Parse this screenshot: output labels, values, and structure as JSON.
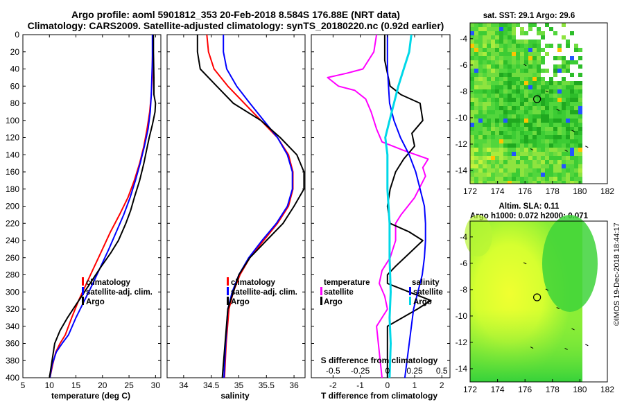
{
  "header": {
    "title_line1": "Argo profile: aoml 5901812_353 20-Feb-2018 8.584S 176.88E (NRT data)",
    "title_line2": "Climatology: CARS2009. Satellite-adjusted climatology: synTS_20180220.nc (0.92d earlier)"
  },
  "credit": "©IMOS 19-Dec-2018 18:44:17",
  "colors": {
    "climatology": "#ff0000",
    "satellite": "#0000ff",
    "argo": "#000000",
    "temperature_diff": "#ff00ff",
    "salinity_diff": "#00d8e8",
    "land_map_green": "#2ecf2e",
    "sla_map_yellow": "#e4ff2a"
  },
  "chart_data": [
    {
      "type": "line",
      "id": "temperature-profile",
      "xlabel": "temperature (deg C)",
      "ylabel": "",
      "xlim": [
        5,
        31
      ],
      "ylim": [
        400,
        0
      ],
      "xticks": [
        5,
        10,
        15,
        20,
        25,
        30
      ],
      "yticks": [
        0,
        20,
        40,
        60,
        80,
        100,
        120,
        140,
        160,
        180,
        200,
        220,
        240,
        260,
        280,
        300,
        320,
        340,
        360,
        380,
        400
      ],
      "legend": [
        "climatology",
        "satellite-adj. clim.",
        "Argo"
      ],
      "series": [
        {
          "name": "climatology",
          "color": "#ff0000",
          "x": [
            29.5,
            29.5,
            29.4,
            29.4,
            29.2,
            28.9,
            28.4,
            27.8,
            27.0,
            26.0,
            24.8,
            23.2,
            21.5,
            20.0,
            18.5,
            17.0,
            15.5,
            14.2,
            13.0,
            12.0,
            11.2,
            10.6,
            10.1
          ],
          "y": [
            0,
            10,
            30,
            50,
            70,
            90,
            110,
            130,
            150,
            170,
            190,
            210,
            230,
            250,
            270,
            290,
            310,
            330,
            350,
            360,
            370,
            385,
            400
          ]
        },
        {
          "name": "satellite-adj. clim.",
          "color": "#0000ff",
          "x": [
            29.4,
            29.4,
            29.4,
            29.3,
            29.2,
            29.0,
            28.6,
            27.9,
            27.1,
            26.2,
            25.2,
            24.0,
            22.6,
            21.2,
            19.7,
            18.2,
            16.6,
            15.0,
            13.6,
            12.4,
            11.3,
            10.5,
            10.1
          ],
          "y": [
            0,
            10,
            30,
            50,
            70,
            90,
            110,
            130,
            150,
            170,
            190,
            210,
            230,
            250,
            270,
            290,
            310,
            330,
            350,
            360,
            370,
            385,
            400
          ]
        },
        {
          "name": "Argo",
          "color": "#000000",
          "x": [
            29.6,
            29.6,
            29.7,
            29.7,
            30.0,
            29.9,
            29.4,
            28.8,
            28.3,
            27.8,
            27.0,
            26.0,
            25.3,
            24.4,
            23.0,
            21.5,
            19.8,
            18.2,
            16.6,
            15.0,
            13.4,
            12.0,
            11.0,
            10.5,
            10.0
          ],
          "y": [
            0,
            20,
            50,
            70,
            80,
            90,
            105,
            120,
            135,
            150,
            170,
            190,
            205,
            220,
            240,
            255,
            270,
            285,
            300,
            315,
            330,
            345,
            360,
            380,
            400
          ]
        }
      ]
    },
    {
      "type": "line",
      "id": "salinity-profile",
      "xlabel": "salinity",
      "ylabel": "",
      "xlim": [
        33.7,
        36.2
      ],
      "ylim": [
        400,
        0
      ],
      "xticks": [
        34,
        34.5,
        35,
        35.5,
        36
      ],
      "legend": [
        "climatology",
        "satellite-adj. clim.",
        "Argo"
      ],
      "series": [
        {
          "name": "climatology",
          "color": "#ff0000",
          "x": [
            34.42,
            34.45,
            34.55,
            34.8,
            35.1,
            35.4,
            35.7,
            35.9,
            35.98,
            35.98,
            35.9,
            35.7,
            35.45,
            35.2,
            35.02,
            34.9,
            34.82,
            34.77,
            34.74
          ],
          "y": [
            0,
            20,
            40,
            60,
            80,
            100,
            120,
            140,
            160,
            180,
            200,
            220,
            240,
            260,
            280,
            300,
            320,
            360,
            400
          ]
        },
        {
          "name": "satellite-adj. clim.",
          "color": "#0000ff",
          "x": [
            34.72,
            34.72,
            34.78,
            34.96,
            35.2,
            35.45,
            35.7,
            35.88,
            35.97,
            35.97,
            35.88,
            35.68,
            35.42,
            35.18,
            35.0,
            34.88,
            34.8,
            34.76,
            34.73
          ],
          "y": [
            0,
            20,
            40,
            60,
            80,
            100,
            120,
            140,
            160,
            180,
            200,
            220,
            240,
            260,
            280,
            300,
            320,
            360,
            400
          ]
        },
        {
          "name": "Argo",
          "color": "#000000",
          "x": [
            34.25,
            34.25,
            34.3,
            34.6,
            34.9,
            35.4,
            35.75,
            36.05,
            36.18,
            36.18,
            36.0,
            35.8,
            35.5,
            35.2,
            35.0,
            34.9,
            34.8,
            34.75,
            34.7
          ],
          "y": [
            0,
            20,
            40,
            60,
            80,
            100,
            120,
            140,
            160,
            180,
            200,
            220,
            240,
            260,
            280,
            300,
            320,
            360,
            400
          ]
        }
      ]
    },
    {
      "type": "line",
      "id": "difference-profile",
      "xlabel": "T difference from climatology",
      "xlabel_top": "S difference from climatology",
      "xlim": [
        -2.8,
        2.3
      ],
      "ylim": [
        400,
        0
      ],
      "xticks": [
        -2,
        -1,
        0,
        1,
        2
      ],
      "xticks_s": [
        -0.5,
        -0.25,
        0,
        0.25,
        0.5
      ],
      "legend_temperature": {
        "title": "temperature",
        "items": [
          "satellite",
          "Argo"
        ]
      },
      "legend_salinity": {
        "title": "salinity",
        "items": [
          "satellite",
          "Argo"
        ]
      },
      "series": [
        {
          "name": "temperature satellite",
          "color": "#ff00ff",
          "x": [
            -0.4,
            -0.5,
            -0.9,
            -1.5,
            -2.2,
            -1.8,
            -1.2,
            -0.8,
            -0.6,
            -0.4,
            -0.2,
            0.6,
            1.5,
            1.3,
            1.4,
            1.0,
            0.5,
            0.3,
            0.3,
            0.1,
            -0.2,
            -0.3,
            -0.1,
            0.0,
            -0.4,
            -0.3,
            -0.2
          ],
          "y": [
            0,
            20,
            40,
            45,
            50,
            60,
            65,
            75,
            90,
            110,
            125,
            135,
            145,
            155,
            165,
            190,
            210,
            220,
            240,
            260,
            275,
            290,
            305,
            320,
            340,
            370,
            400
          ]
        },
        {
          "name": "temperature Argo",
          "color": "#000000",
          "x": [
            -0.1,
            -0.1,
            0.1,
            0.5,
            1.2,
            1.3,
            0.9,
            1.0,
            0.6,
            0.3,
            0.1,
            0.0,
            0.1,
            0.8,
            1.3,
            0.8,
            0.3,
            0.0,
            0.0,
            0.8,
            1.6,
            1.1,
            0.0,
            0.0
          ],
          "y": [
            0,
            30,
            60,
            70,
            80,
            100,
            115,
            130,
            145,
            160,
            180,
            200,
            220,
            230,
            240,
            255,
            270,
            280,
            290,
            300,
            310,
            320,
            340,
            400
          ]
        }
      ],
      "series_salinity": [
        {
          "name": "salinity satellite",
          "color": "#0000ff",
          "x": [
            0.0,
            0.0,
            0.02,
            0.06,
            0.12,
            0.2,
            0.26,
            0.3,
            0.34,
            0.35,
            0.35,
            0.34,
            0.32,
            0.28,
            0.24,
            0.2,
            0.16
          ],
          "y": [
            0,
            40,
            80,
            100,
            120,
            140,
            160,
            180,
            200,
            220,
            240,
            260,
            280,
            300,
            320,
            360,
            400
          ]
        },
        {
          "name": "salinity Argo",
          "color": "#00d8e8",
          "x": [
            0.22,
            0.2,
            0.15,
            0.1,
            0.06,
            0.02,
            -0.02,
            0.0,
            0.0,
            0.02,
            0.02,
            0.03,
            0.02,
            0.03,
            0.02
          ],
          "y": [
            0,
            20,
            40,
            60,
            80,
            100,
            120,
            140,
            180,
            220,
            260,
            300,
            330,
            360,
            400
          ]
        }
      ]
    },
    {
      "type": "heatmap",
      "id": "sst-map",
      "title": "sat. SST: 29.1 Argo: 29.6",
      "xlim": [
        172,
        182
      ],
      "ylim": [
        -15,
        -2.8
      ],
      "xticks": [
        172,
        174,
        176,
        178,
        180,
        182
      ],
      "yticks": [
        -4,
        -6,
        -8,
        -10,
        -12,
        -14
      ],
      "marker": {
        "lon": 176.88,
        "lat": -8.584
      }
    },
    {
      "type": "heatmap",
      "id": "sla-map",
      "title": "Altim. SLA: 0.11",
      "subtitle": "Argo h1000: 0.072 h2000: 0.071",
      "xlim": [
        172,
        182
      ],
      "ylim": [
        -15,
        -2.8
      ],
      "xticks": [
        172,
        174,
        176,
        178,
        180,
        182
      ],
      "yticks": [
        -4,
        -6,
        -8,
        -10,
        -12,
        -14
      ],
      "marker": {
        "lon": 176.88,
        "lat": -8.584
      }
    }
  ]
}
